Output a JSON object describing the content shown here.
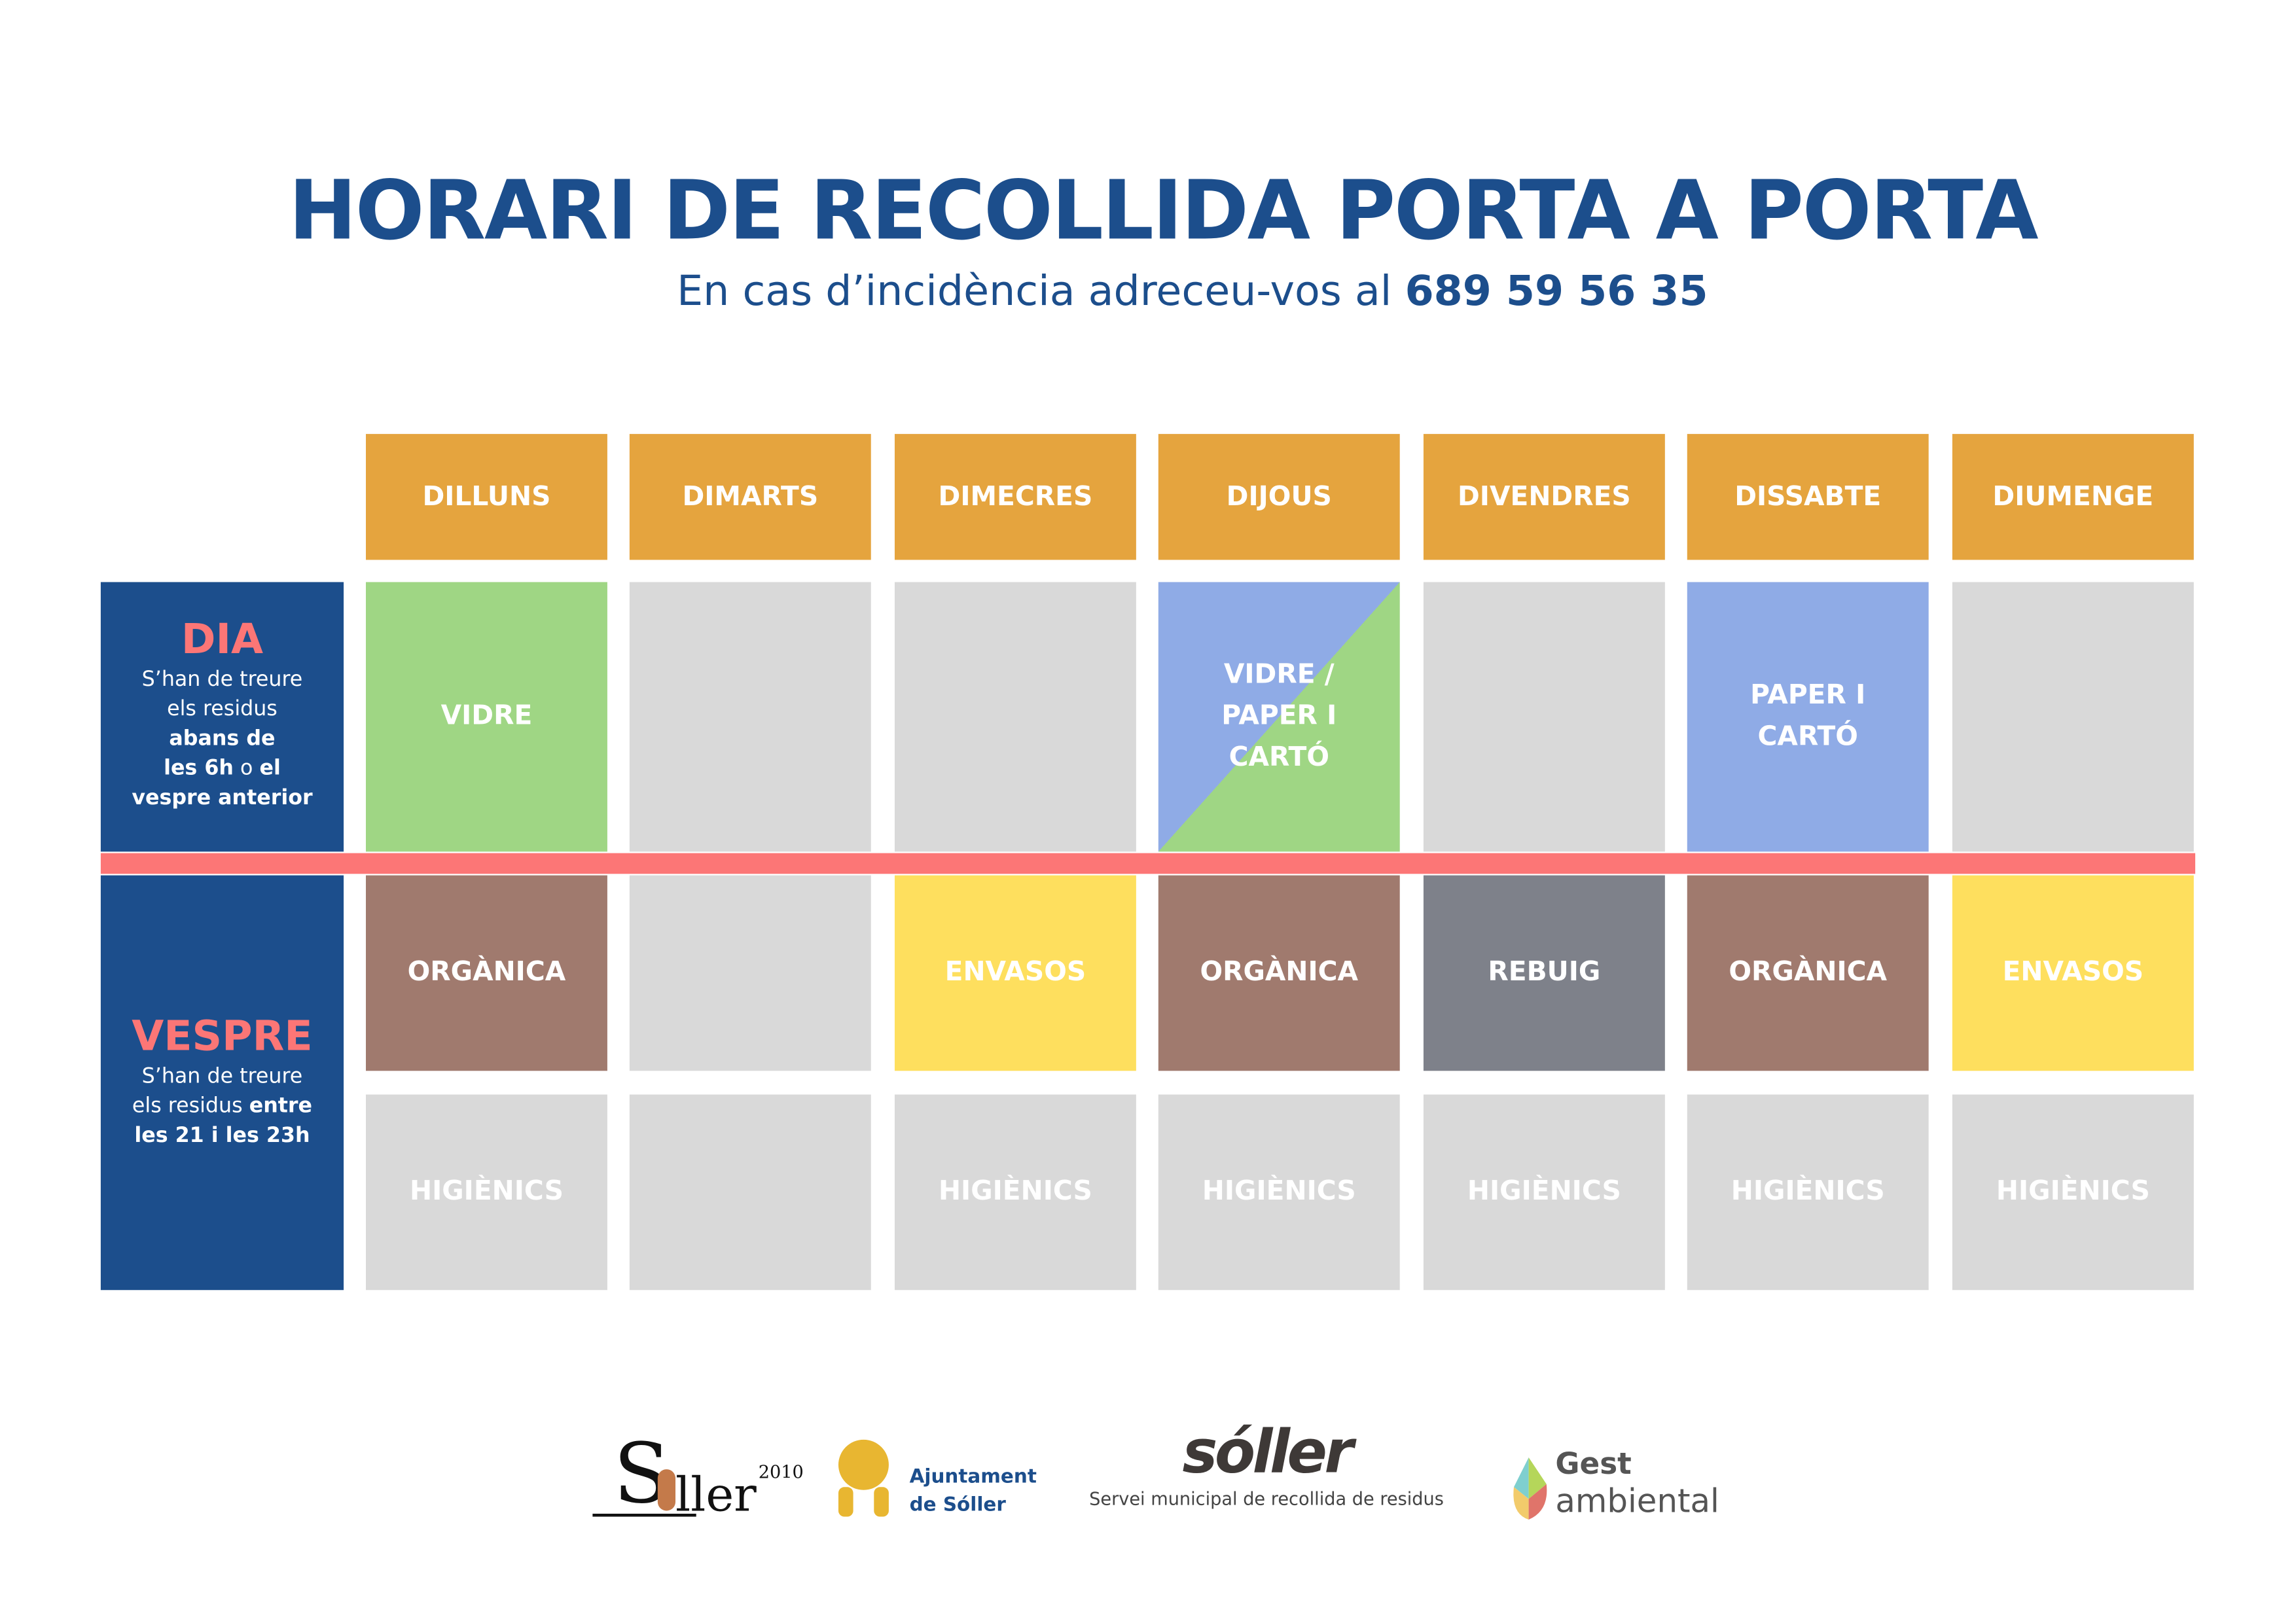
{
  "header": {
    "title": "HORARI DE RECOLLIDA PORTA A PORTA",
    "subtitle_prefix": "En cas d’incidència adreceu-vos al",
    "phone": "689 59 56 35"
  },
  "days": [
    "DILLUNS",
    "DIMARTS",
    "DIMECRES",
    "DIJOUS",
    "DIVENDRES",
    "DISSABTE",
    "DIUMENGE"
  ],
  "dia": {
    "title": "DIA",
    "line1": "S’han de treure",
    "line2": "els residus",
    "bold1": "abans de",
    "bold2a": "les 6h",
    "conj": "o",
    "bold2b": "el",
    "bold3": "vespre anterior",
    "cells": [
      "VIDRE",
      "",
      "",
      "VIDRE / PAPER I CARTÓ",
      "",
      "PAPER I CARTÓ",
      ""
    ]
  },
  "vespre": {
    "title": "VESPRE",
    "line1": "S’han de treure",
    "line2": "els residus",
    "bold1": "entre",
    "bold2": "les 21 i les 23h",
    "cells": [
      "ORGÀNICA",
      "",
      "ENVASOS",
      "ORGÀNICA",
      "REBUIG",
      "ORGÀNICA",
      "ENVASOS"
    ],
    "hygiene": [
      "HIGIÈNICS",
      "",
      "HIGIÈNICS",
      "HIGIÈNICS",
      "HIGIÈNICS",
      "HIGIÈNICS",
      "HIGIÈNICS"
    ]
  },
  "colors": {
    "navy": "#1c4e8c",
    "orange": "#e5a43e",
    "vidre": "#9fd684",
    "paper": "#8fabe6",
    "organica": "#a07a6e",
    "envasos": "#fedf5e",
    "rebuig": "#7e818a",
    "empty": "#d9d9d9",
    "accent": "#fc7676"
  },
  "logos": {
    "soller2010": "Sóller 2010",
    "ajuntament_1": "Ajuntament",
    "ajuntament_2": "de Sóller",
    "soller_brand": "sóller",
    "servei": "Servei municipal de recollida de residus",
    "gest_1": "Gest",
    "gest_2": "ambiental"
  }
}
